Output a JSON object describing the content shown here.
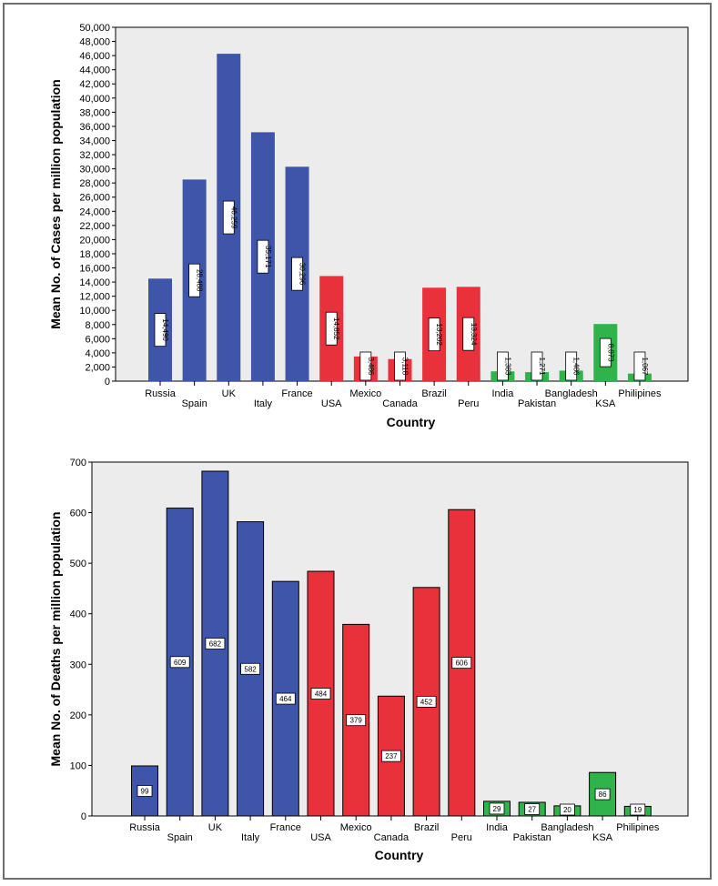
{
  "colors": {
    "group1": "#3f55a9",
    "group2": "#e8313b",
    "group3": "#2fb34a",
    "plot_bg": "#ececec"
  },
  "chart_data": [
    {
      "type": "bar",
      "title": "",
      "xlabel": "Country",
      "ylabel": "Mean No. of Cases per million population",
      "ylim": [
        0,
        50000
      ],
      "y_ticks": [
        "0",
        "2,000",
        "4,000",
        "6,000",
        "8,000",
        "10,000",
        "12,000",
        "14,000",
        "16,000",
        "18,000",
        "20,000",
        "22,000",
        "24,000",
        "26,000",
        "28,000",
        "30,000",
        "32,000",
        "34,000",
        "36,000",
        "38,000",
        "40,000",
        "42,000",
        "44,000",
        "46,000",
        "48,000",
        "50,000"
      ],
      "categories": [
        "Russia",
        "Spain",
        "UK",
        "Italy",
        "France",
        "USA",
        "Mexico",
        "Canada",
        "Brazil",
        "Peru",
        "India",
        "Pakistan",
        "Bangladesh",
        "KSA",
        "Philipines"
      ],
      "values": [
        14490,
        28488,
        46259,
        35171,
        30296,
        14852,
        3486,
        3118,
        13202,
        13324,
        1383,
        1271,
        1486,
        8073,
        1067
      ],
      "value_labels": [
        "14,490",
        "28,488",
        "46,259",
        "35,171",
        "30,296",
        "14,852",
        "3,486",
        "3,118",
        "13,202",
        "13,324",
        "1,383",
        "1,271",
        "1,486",
        "8,073",
        "1,067"
      ],
      "groups": [
        1,
        1,
        1,
        1,
        1,
        2,
        2,
        2,
        2,
        2,
        3,
        3,
        3,
        3,
        3
      ],
      "grid": false
    },
    {
      "type": "bar",
      "title": "",
      "xlabel": "Country",
      "ylabel": "Mean No. of Deaths per million population",
      "ylim": [
        0,
        700
      ],
      "y_ticks": [
        "0",
        "100",
        "200",
        "300",
        "400",
        "500",
        "600",
        "700"
      ],
      "categories": [
        "Russia",
        "Spain",
        "UK",
        "Italy",
        "France",
        "USA",
        "Mexico",
        "Canada",
        "Brazil",
        "Peru",
        "India",
        "Pakistan",
        "Bangladesh",
        "KSA",
        "Philipines"
      ],
      "values": [
        99,
        609,
        682,
        582,
        464,
        484,
        379,
        237,
        452,
        606,
        29,
        27,
        20,
        86,
        19
      ],
      "value_labels": [
        "99",
        "609",
        "682",
        "582",
        "464",
        "484",
        "379",
        "237",
        "452",
        "606",
        "29",
        "27",
        "20",
        "86",
        "19"
      ],
      "groups": [
        1,
        1,
        1,
        1,
        1,
        2,
        2,
        2,
        2,
        2,
        3,
        3,
        3,
        3,
        3
      ],
      "grid": false
    }
  ]
}
